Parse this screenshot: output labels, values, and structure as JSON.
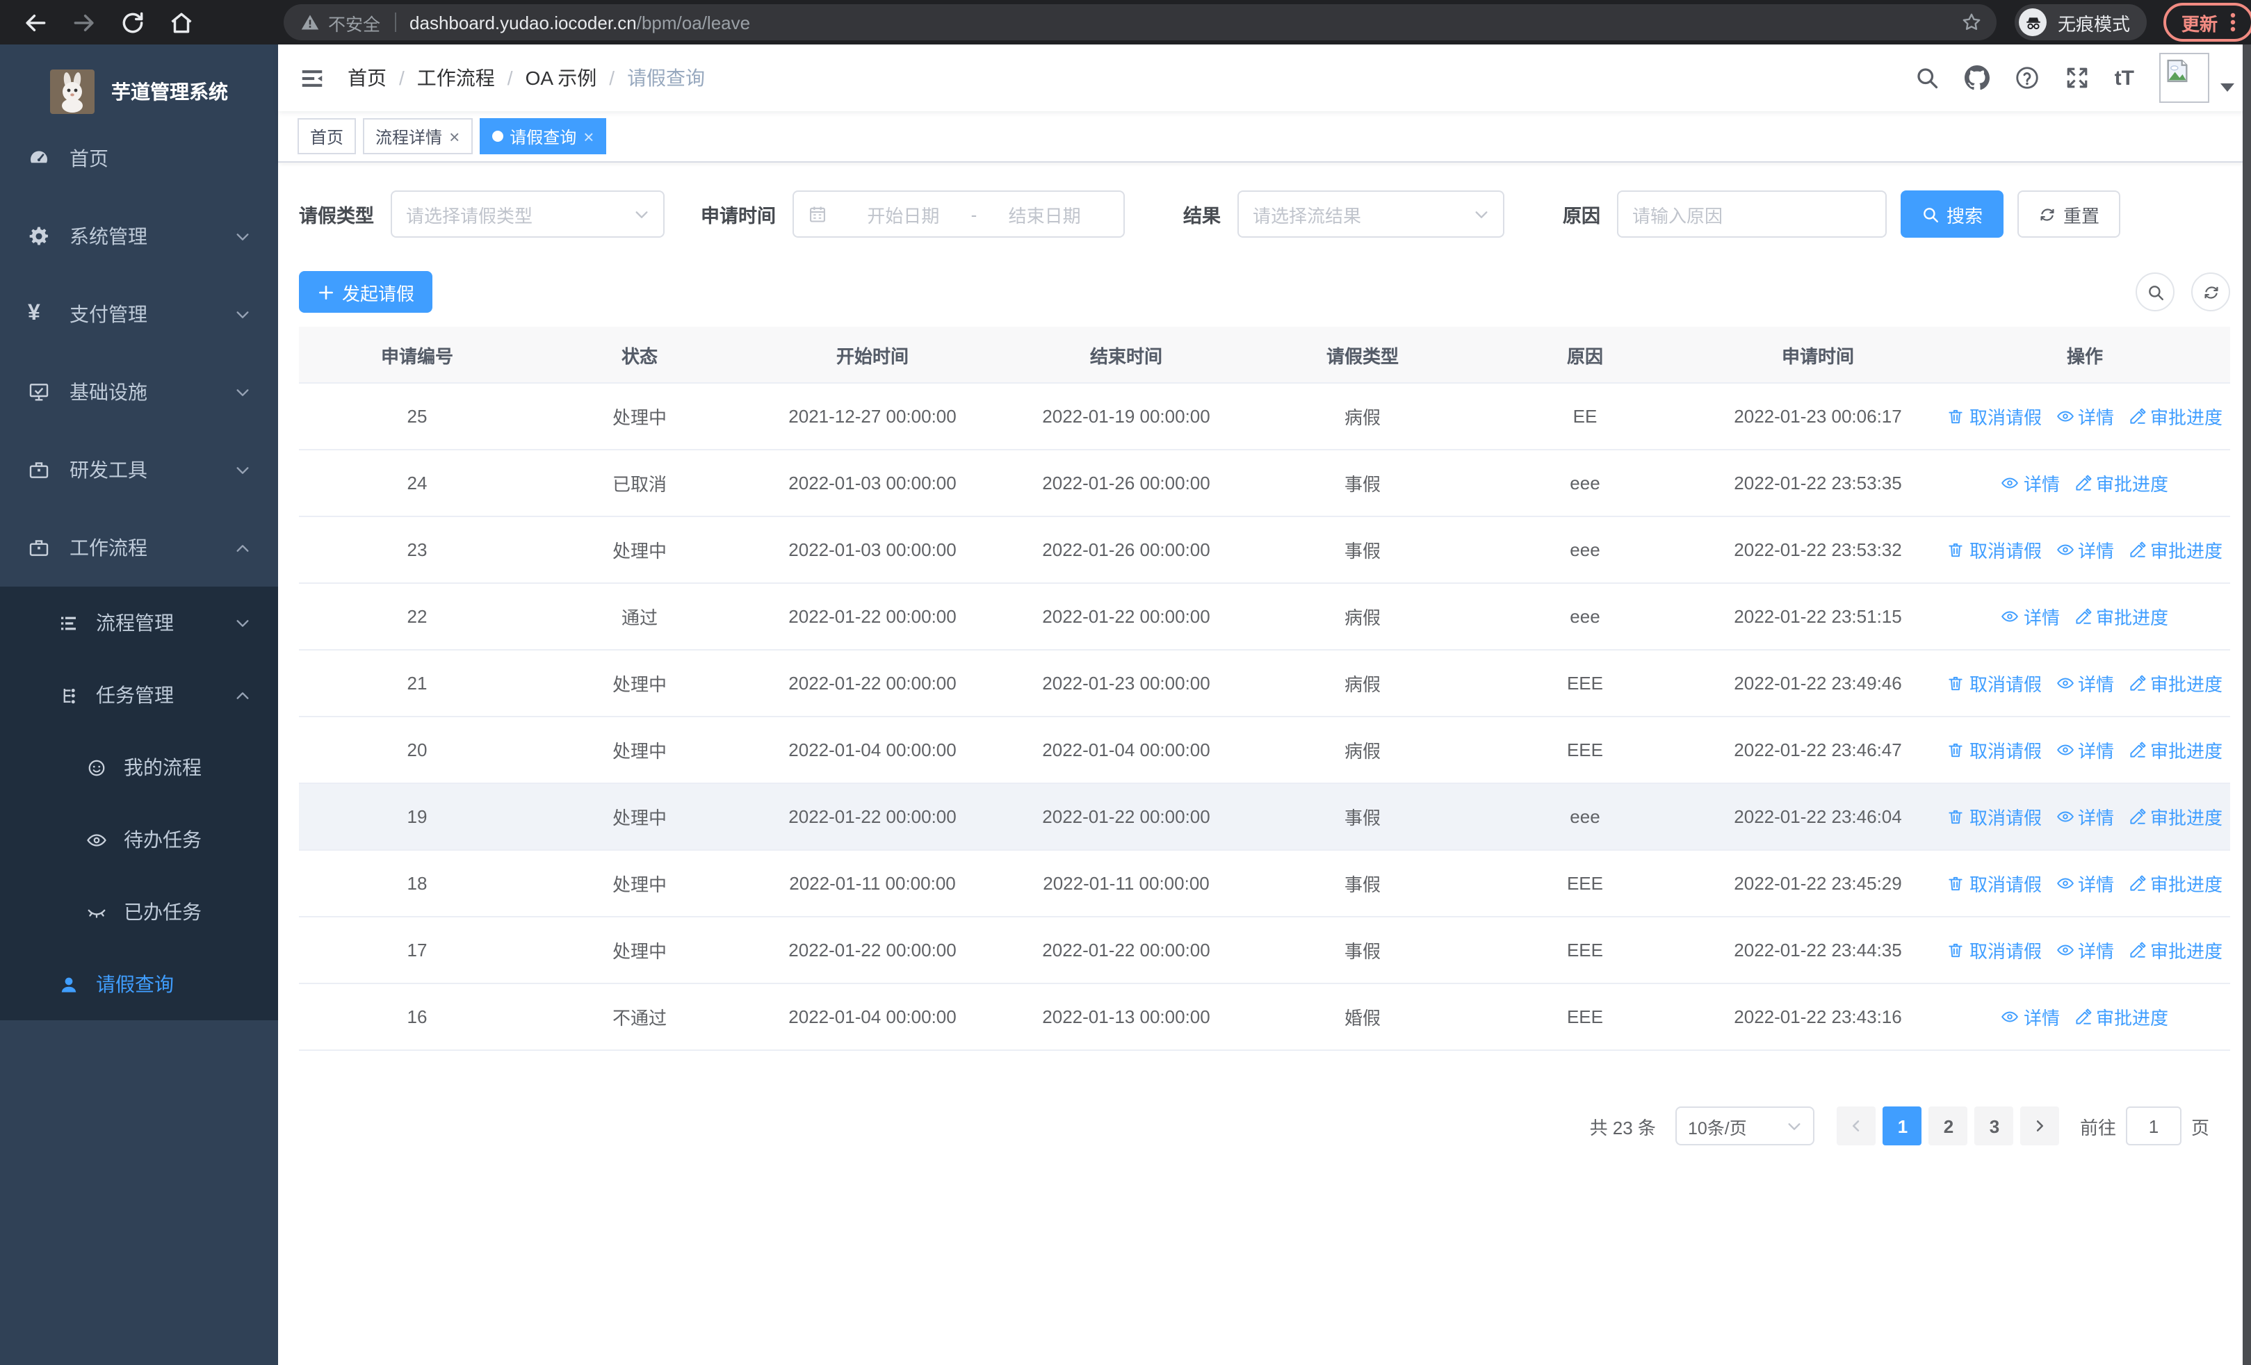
{
  "colors": {
    "accent": "#409eff",
    "sidebar_bg": "#304156",
    "submenu_bg": "#1f2d3d",
    "update_pill": "#f28b82"
  },
  "browser": {
    "security_text": "不安全",
    "url_host": "dashboard.yudao.iocoder.cn",
    "url_path": "/bpm/oa/leave",
    "incognito_label": "无痕模式",
    "update_label": "更新"
  },
  "sidebar": {
    "logo_title": "芋道管理系统",
    "items": [
      {
        "label": "首页",
        "icon": "gauge",
        "chevron": ""
      },
      {
        "label": "系统管理",
        "icon": "gear",
        "chevron": "down"
      },
      {
        "label": "支付管理",
        "icon": "yen",
        "chevron": "down"
      },
      {
        "label": "基础设施",
        "icon": "monitor",
        "chevron": "down"
      },
      {
        "label": "研发工具",
        "icon": "toolbox",
        "chevron": "down"
      },
      {
        "label": "工作流程",
        "icon": "briefcase",
        "chevron": "up"
      }
    ],
    "workflow_children": [
      {
        "label": "流程管理",
        "icon": "list-tree",
        "chevron": "down",
        "level": 1,
        "active": false
      },
      {
        "label": "任务管理",
        "icon": "tree",
        "chevron": "up",
        "level": 1,
        "active": false
      },
      {
        "label": "我的流程",
        "icon": "face",
        "chevron": "",
        "level": 2,
        "active": false
      },
      {
        "label": "待办任务",
        "icon": "eye",
        "chevron": "",
        "level": 2,
        "active": false
      },
      {
        "label": "已办任务",
        "icon": "eye-closed",
        "chevron": "",
        "level": 2,
        "active": false
      },
      {
        "label": "请假查询",
        "icon": "user",
        "chevron": "",
        "level": 1,
        "active": true
      }
    ]
  },
  "header": {
    "breadcrumb": [
      "首页",
      "工作流程",
      "OA 示例",
      "请假查询"
    ]
  },
  "tabs": [
    {
      "label": "首页",
      "closable": false,
      "active": false
    },
    {
      "label": "流程详情",
      "closable": true,
      "active": false
    },
    {
      "label": "请假查询",
      "closable": true,
      "active": true
    }
  ],
  "filters": {
    "leave_type": {
      "label": "请假类型",
      "placeholder": "请选择请假类型"
    },
    "apply_time": {
      "label": "申请时间",
      "start_placeholder": "开始日期",
      "separator": "-",
      "end_placeholder": "结束日期"
    },
    "result": {
      "label": "结果",
      "placeholder": "请选择流结果"
    },
    "reason": {
      "label": "原因",
      "placeholder": "请输入原因"
    },
    "search_label": "搜索",
    "reset_label": "重置"
  },
  "toolbar": {
    "create_label": "发起请假"
  },
  "table": {
    "columns": [
      "申请编号",
      "状态",
      "开始时间",
      "结束时间",
      "请假类型",
      "原因",
      "申请时间",
      "操作"
    ],
    "action_labels": {
      "cancel": "取消请假",
      "detail": "详情",
      "progress": "审批进度"
    },
    "rows": [
      {
        "id": "25",
        "status": "处理中",
        "start": "2021-12-27 00:00:00",
        "end": "2022-01-19 00:00:00",
        "type": "病假",
        "reason": "EE",
        "apply": "2022-01-23 00:06:17",
        "actions": [
          "cancel",
          "detail",
          "progress"
        ],
        "highlight": false
      },
      {
        "id": "24",
        "status": "已取消",
        "start": "2022-01-03 00:00:00",
        "end": "2022-01-26 00:00:00",
        "type": "事假",
        "reason": "eee",
        "apply": "2022-01-22 23:53:35",
        "actions": [
          "detail",
          "progress"
        ],
        "highlight": false
      },
      {
        "id": "23",
        "status": "处理中",
        "start": "2022-01-03 00:00:00",
        "end": "2022-01-26 00:00:00",
        "type": "事假",
        "reason": "eee",
        "apply": "2022-01-22 23:53:32",
        "actions": [
          "cancel",
          "detail",
          "progress"
        ],
        "highlight": false
      },
      {
        "id": "22",
        "status": "通过",
        "start": "2022-01-22 00:00:00",
        "end": "2022-01-22 00:00:00",
        "type": "病假",
        "reason": "eee",
        "apply": "2022-01-22 23:51:15",
        "actions": [
          "detail",
          "progress"
        ],
        "highlight": false
      },
      {
        "id": "21",
        "status": "处理中",
        "start": "2022-01-22 00:00:00",
        "end": "2022-01-23 00:00:00",
        "type": "病假",
        "reason": "EEE",
        "apply": "2022-01-22 23:49:46",
        "actions": [
          "cancel",
          "detail",
          "progress"
        ],
        "highlight": false
      },
      {
        "id": "20",
        "status": "处理中",
        "start": "2022-01-04 00:00:00",
        "end": "2022-01-04 00:00:00",
        "type": "病假",
        "reason": "EEE",
        "apply": "2022-01-22 23:46:47",
        "actions": [
          "cancel",
          "detail",
          "progress"
        ],
        "highlight": false
      },
      {
        "id": "19",
        "status": "处理中",
        "start": "2022-01-22 00:00:00",
        "end": "2022-01-22 00:00:00",
        "type": "事假",
        "reason": "eee",
        "apply": "2022-01-22 23:46:04",
        "actions": [
          "cancel",
          "detail",
          "progress"
        ],
        "highlight": true
      },
      {
        "id": "18",
        "status": "处理中",
        "start": "2022-01-11 00:00:00",
        "end": "2022-01-11 00:00:00",
        "type": "事假",
        "reason": "EEE",
        "apply": "2022-01-22 23:45:29",
        "actions": [
          "cancel",
          "detail",
          "progress"
        ],
        "highlight": false
      },
      {
        "id": "17",
        "status": "处理中",
        "start": "2022-01-22 00:00:00",
        "end": "2022-01-22 00:00:00",
        "type": "事假",
        "reason": "EEE",
        "apply": "2022-01-22 23:44:35",
        "actions": [
          "cancel",
          "detail",
          "progress"
        ],
        "highlight": false
      },
      {
        "id": "16",
        "status": "不通过",
        "start": "2022-01-04 00:00:00",
        "end": "2022-01-13 00:00:00",
        "type": "婚假",
        "reason": "EEE",
        "apply": "2022-01-22 23:43:16",
        "actions": [
          "detail",
          "progress"
        ],
        "highlight": false
      }
    ]
  },
  "pagination": {
    "total_label": "共 23 条",
    "page_size": "10条/页",
    "pages": [
      "1",
      "2",
      "3"
    ],
    "active_page": "1",
    "goto_label": "前往",
    "goto_value": "1",
    "page_suffix": "页"
  }
}
